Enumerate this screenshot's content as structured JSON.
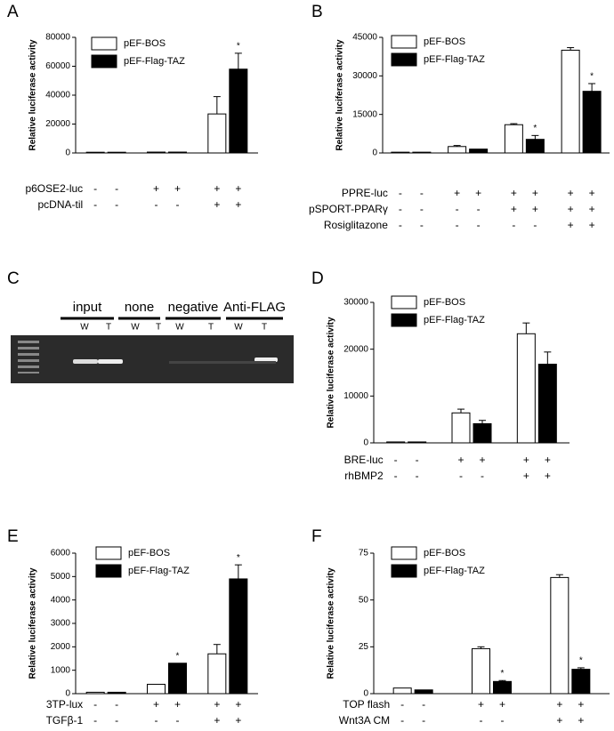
{
  "chart_data": [
    {
      "type": "bar",
      "label": "A",
      "y_label": "Relative luciferase activity",
      "categories": [
        null,
        null,
        null
      ],
      "series": [
        {
          "name": "pEF-BOS",
          "color": "#ffffff",
          "values": [
            500,
            600,
            27000
          ],
          "errors": [
            null,
            null,
            12000
          ],
          "stars": [
            null,
            null,
            null
          ]
        },
        {
          "name": "pEF-Flag-TAZ",
          "color": "#000000",
          "values": [
            500,
            600,
            58000
          ],
          "errors": [
            null,
            null,
            11000
          ],
          "stars": [
            null,
            null,
            "*"
          ]
        }
      ],
      "conditions": [
        {
          "name": "p6OSE2-luc",
          "values": [
            "-",
            "-",
            "+",
            "+",
            "+",
            "+"
          ]
        },
        {
          "name": "pcDNA-til",
          "values": [
            "-",
            "-",
            "-",
            "-",
            "+",
            "+"
          ]
        }
      ],
      "ylim": [
        0,
        80000
      ],
      "yticks": [
        0,
        20000,
        40000,
        60000,
        80000
      ]
    },
    {
      "type": "bar",
      "label": "B",
      "y_label": "Relative luciferase activity",
      "categories": [
        null,
        null,
        null,
        null
      ],
      "series": [
        {
          "name": "pEF-BOS",
          "color": "#ffffff",
          "values": [
            300,
            2500,
            11000,
            40000
          ],
          "errors": [
            null,
            400,
            400,
            1000
          ],
          "stars": [
            null,
            null,
            null,
            null
          ]
        },
        {
          "name": "pEF-Flag-TAZ",
          "color": "#000000",
          "values": [
            300,
            1500,
            5300,
            24000
          ],
          "errors": [
            null,
            null,
            1500,
            3000
          ],
          "stars": [
            null,
            null,
            "*",
            "*"
          ]
        }
      ],
      "conditions": [
        {
          "name": "PPRE-luc",
          "values": [
            "-",
            "-",
            "+",
            "+",
            "+",
            "+",
            "+",
            "+"
          ]
        },
        {
          "name": "pSPORT-PPARγ",
          "values": [
            "-",
            "-",
            "-",
            "-",
            "+",
            "+",
            "+",
            "+"
          ]
        },
        {
          "name": "Rosiglitazone",
          "values": [
            "-",
            "-",
            "-",
            "-",
            "-",
            "-",
            "+",
            "+"
          ]
        }
      ],
      "ylim": [
        0,
        45000
      ],
      "yticks": [
        0,
        15000,
        30000,
        45000
      ]
    },
    {
      "type": "bar",
      "label": "D",
      "y_label": "Relative luciferase activity",
      "categories": [
        null,
        null,
        null
      ],
      "series": [
        {
          "name": "pEF-BOS",
          "color": "#ffffff",
          "values": [
            200,
            6400,
            23300
          ],
          "errors": [
            null,
            800,
            2300
          ],
          "stars": [
            null,
            null,
            null
          ]
        },
        {
          "name": "pEF-Flag-TAZ",
          "color": "#000000",
          "values": [
            200,
            4100,
            16800
          ],
          "errors": [
            null,
            700,
            2600
          ],
          "stars": [
            null,
            null,
            null
          ]
        }
      ],
      "conditions": [
        {
          "name": "BRE-luc",
          "values": [
            "-",
            "-",
            "+",
            "+",
            "+",
            "+"
          ]
        },
        {
          "name": "rhBMP2",
          "values": [
            "-",
            "-",
            "-",
            "-",
            "+",
            "+"
          ]
        }
      ],
      "ylim": [
        0,
        30000
      ],
      "yticks": [
        0,
        10000,
        20000,
        30000
      ]
    },
    {
      "type": "bar",
      "label": "E",
      "y_label": "Relative luciferase activity",
      "categories": [
        null,
        null,
        null
      ],
      "series": [
        {
          "name": "pEF-BOS",
          "color": "#ffffff",
          "values": [
            60,
            400,
            1700
          ],
          "errors": [
            null,
            null,
            400
          ],
          "stars": [
            null,
            null,
            null
          ]
        },
        {
          "name": "pEF-Flag-TAZ",
          "color": "#000000",
          "values": [
            60,
            1300,
            4900
          ],
          "errors": [
            null,
            null,
            600
          ],
          "stars": [
            null,
            "*",
            "*"
          ]
        }
      ],
      "conditions": [
        {
          "name": "3TP-lux",
          "values": [
            "-",
            "-",
            "+",
            "+",
            "+",
            "+"
          ]
        },
        {
          "name": "TGFβ-1",
          "values": [
            "-",
            "-",
            "-",
            "-",
            "+",
            "+"
          ]
        }
      ],
      "ylim": [
        0,
        6000
      ],
      "yticks": [
        0,
        1000,
        2000,
        3000,
        4000,
        5000,
        6000
      ]
    },
    {
      "type": "bar",
      "label": "F",
      "y_label": "Relative luciferase activity",
      "categories": [
        null,
        null,
        null
      ],
      "series": [
        {
          "name": "pEF-BOS",
          "color": "#ffffff",
          "values": [
            3,
            24,
            62
          ],
          "errors": [
            null,
            1,
            1.5
          ],
          "stars": [
            null,
            null,
            null
          ]
        },
        {
          "name": "pEF-Flag-TAZ",
          "color": "#000000",
          "values": [
            2,
            6.5,
            13
          ],
          "errors": [
            null,
            0.5,
            0.8
          ],
          "stars": [
            null,
            "*",
            "*"
          ]
        }
      ],
      "conditions": [
        {
          "name": "TOP flash",
          "values": [
            "-",
            "-",
            "+",
            "+",
            "+",
            "+"
          ]
        },
        {
          "name": "Wnt3A CM",
          "values": [
            "-",
            "-",
            "-",
            "-",
            "+",
            "+"
          ]
        }
      ],
      "ylim": [
        0,
        75
      ],
      "yticks": [
        0,
        25,
        50,
        75
      ]
    }
  ],
  "gel": {
    "label": "C",
    "groups": [
      "input",
      "none",
      "negative",
      "Anti-FLAG"
    ],
    "lanes": [
      "W",
      "T",
      "W",
      "T",
      "W",
      "T",
      "W",
      "T"
    ]
  }
}
